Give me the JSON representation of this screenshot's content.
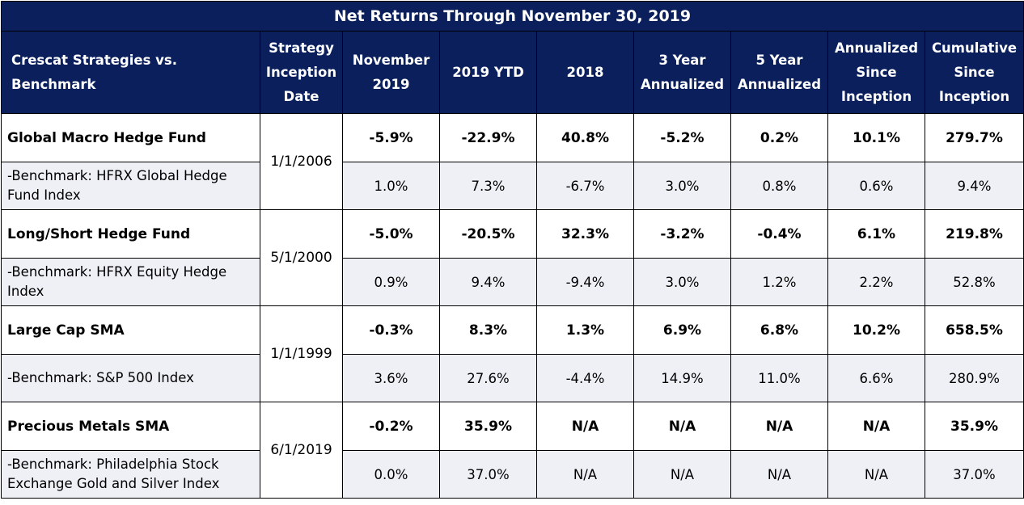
{
  "title": "Net Returns Through November 30, 2019",
  "headers": {
    "strategy": "Crescat Strategies vs. Benchmark",
    "inception_date": "Strategy Inception Date",
    "november": "November 2019",
    "ytd": "2019 YTD",
    "y2018": "2018",
    "three_year": "3 Year Annualized",
    "five_year": "5 Year Annualized",
    "annualized_since": "Annualized Since Inception",
    "cumulative_since": "Cumulative Since Inception"
  },
  "groups": [
    {
      "inception": "1/1/2006",
      "fund": {
        "name": "Global Macro Hedge Fund",
        "values": [
          "-5.9%",
          "-22.9%",
          "40.8%",
          "-5.2%",
          "0.2%",
          "10.1%",
          "279.7%"
        ]
      },
      "benchmark": {
        "name": "-Benchmark: HFRX Global Hedge Fund Index",
        "values": [
          "1.0%",
          "7.3%",
          "-6.7%",
          "3.0%",
          "0.8%",
          "0.6%",
          "9.4%"
        ]
      }
    },
    {
      "inception": "5/1/2000",
      "fund": {
        "name": "Long/Short Hedge Fund",
        "values": [
          "-5.0%",
          "-20.5%",
          "32.3%",
          "-3.2%",
          "-0.4%",
          "6.1%",
          "219.8%"
        ]
      },
      "benchmark": {
        "name": "-Benchmark: HFRX Equity Hedge Index",
        "values": [
          "0.9%",
          "9.4%",
          "-9.4%",
          "3.0%",
          "1.2%",
          "2.2%",
          "52.8%"
        ]
      }
    },
    {
      "inception": "1/1/1999",
      "fund": {
        "name": "Large Cap SMA",
        "values": [
          "-0.3%",
          "8.3%",
          "1.3%",
          "6.9%",
          "6.8%",
          "10.2%",
          "658.5%"
        ]
      },
      "benchmark": {
        "name": "-Benchmark: S&P 500 Index",
        "values": [
          "3.6%",
          "27.6%",
          "-4.4%",
          "14.9%",
          "11.0%",
          "6.6%",
          "280.9%"
        ]
      }
    },
    {
      "inception": "6/1/2019",
      "fund": {
        "name": "Precious Metals SMA",
        "values": [
          "-0.2%",
          "35.9%",
          "N/A",
          "N/A",
          "N/A",
          "N/A",
          "35.9%"
        ]
      },
      "benchmark": {
        "name": "-Benchmark: Philadelphia Stock Exchange Gold and Silver Index",
        "values": [
          "0.0%",
          "37.0%",
          "N/A",
          "N/A",
          "N/A",
          "N/A",
          "37.0%"
        ]
      }
    }
  ],
  "colors": {
    "header_bg": "#0a1f5c",
    "benchmark_bg": "#eef0f6"
  }
}
